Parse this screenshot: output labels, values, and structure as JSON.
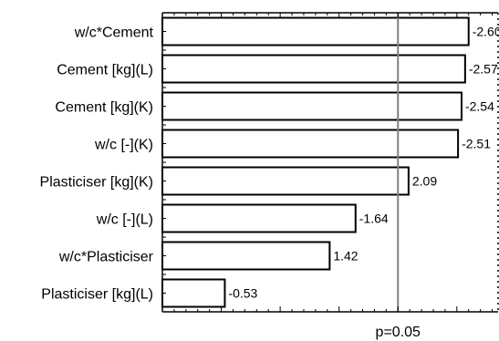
{
  "chart_data": {
    "type": "bar",
    "orientation": "horizontal",
    "categories": [
      "w/c*Cement",
      "Cement [kg](L)",
      "Cement [kg](K)",
      "w/c [-](K)",
      "Plasticiser [kg](K)",
      "w/c [-](L)",
      "w/c*Plasticiser",
      "Plasticiser [kg](L)"
    ],
    "values": [
      -2.6,
      -2.57,
      -2.54,
      -2.51,
      2.09,
      -1.64,
      1.42,
      -0.53
    ],
    "value_labels": [
      "-2.60",
      "-2.57",
      "-2.54",
      "-2.51",
      "2.09",
      "-1.64",
      "1.42",
      "-0.53"
    ],
    "bar_length": "absolute value",
    "xlim": [
      0,
      2.85
    ],
    "reference_line": {
      "value": 2.0,
      "label": "p=0.05"
    },
    "title": "",
    "xlabel": "",
    "ylabel": "",
    "grid": false,
    "legend": "none",
    "colors": {
      "bar_fill": "#ffffff",
      "bar_stroke": "#000000",
      "reference_line": "#808080"
    }
  }
}
